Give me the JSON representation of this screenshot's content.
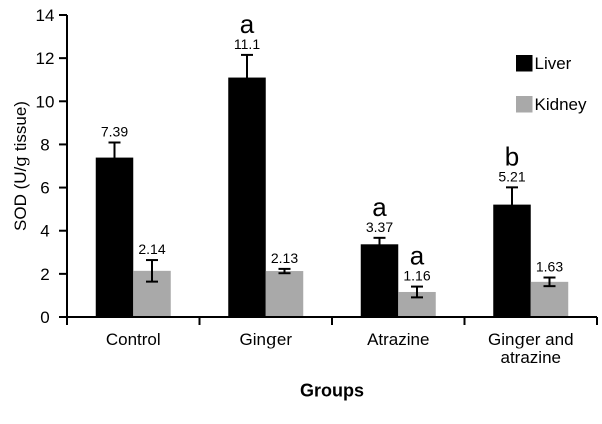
{
  "figure": {
    "background": "#ffffff",
    "axis_color": "#000000"
  },
  "chart_data": {
    "type": "bar",
    "title": "",
    "xlabel": "Groups",
    "ylabel": "SOD (U/g tissue)",
    "ylim": [
      0,
      14
    ],
    "yticks": [
      0,
      2,
      4,
      6,
      8,
      10,
      12,
      14
    ],
    "grid": false,
    "legend_position": "right",
    "categories": [
      "Control",
      "Ginger",
      "Atrazine",
      "Ginger and\natrazine"
    ],
    "series": [
      {
        "name": "Liver",
        "color": "#000000",
        "values": [
          7.39,
          11.1,
          3.37,
          5.21
        ],
        "errors": [
          0.7,
          1.05,
          0.3,
          0.8
        ],
        "value_labels": [
          "7.39",
          "11.1",
          "3.37",
          "5.21"
        ],
        "sig_letters": [
          "",
          "a",
          "a",
          "b"
        ]
      },
      {
        "name": "Kidney",
        "color": "#a9a9a9",
        "values": [
          2.14,
          2.13,
          1.16,
          1.63
        ],
        "errors": [
          0.5,
          0.1,
          0.25,
          0.2
        ],
        "value_labels": [
          "2.14",
          "2.13",
          "1.16",
          "1.63"
        ],
        "sig_letters": [
          "",
          "",
          "a",
          ""
        ]
      }
    ]
  }
}
